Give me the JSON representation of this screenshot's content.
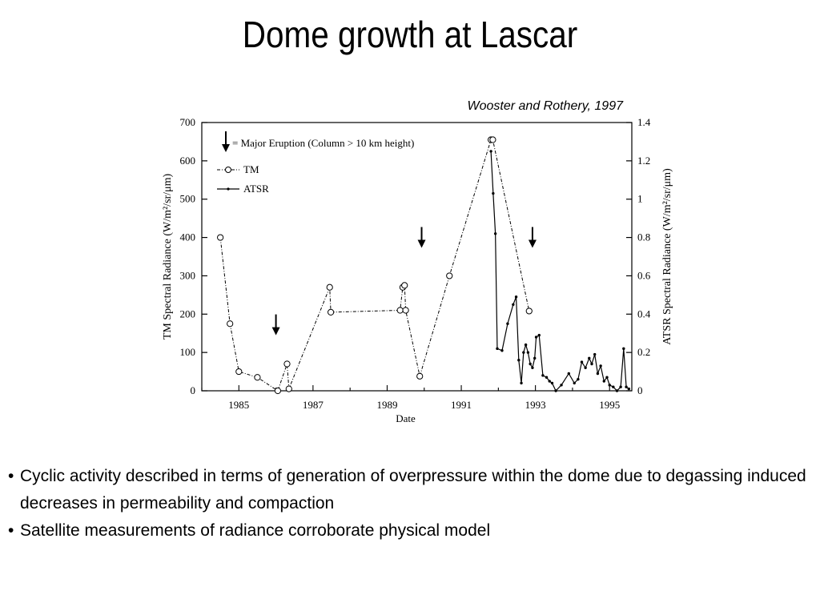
{
  "slide": {
    "title": "Dome growth at Lascar",
    "citation": "Wooster and Rothery, 1997",
    "bullets": [
      "Cyclic activity described in terms of generation of overpressure within the dome due to degassing induced decreases in permeability and compaction",
      "Satellite measurements of radiance corroborate physical model"
    ]
  },
  "chart_data": {
    "type": "line",
    "title": "",
    "xlabel": "Date",
    "ylabel": "TM Spectral Radiance (W/m²/sr/μm)",
    "y2label": "ATSR Spectral Radiance (W/m²/sr/μm)",
    "xlim": [
      1984,
      1995.6
    ],
    "ylim": [
      0,
      700
    ],
    "y2lim": [
      0,
      1.4
    ],
    "x_ticks": [
      1985,
      1987,
      1989,
      1991,
      1993,
      1995
    ],
    "x_tick_labels": [
      "1985",
      "1987",
      "1989",
      "1991",
      "1993",
      "1995"
    ],
    "y_ticks": [
      0,
      100,
      200,
      300,
      400,
      500,
      600,
      700
    ],
    "y_tick_labels": [
      "0",
      "100",
      "200",
      "300",
      "400",
      "500",
      "600",
      "700"
    ],
    "y2_ticks": [
      0,
      0.2,
      0.4,
      0.6,
      0.8,
      1.0,
      1.2,
      1.4
    ],
    "y2_tick_labels": [
      "0",
      "0.2",
      "0.4",
      "0.6",
      "0.8",
      "1",
      "1.2",
      "1.4"
    ],
    "grid": false,
    "legend": {
      "position": "top-left",
      "eruption_label": "= Major Eruption (Column > 10 km height)"
    },
    "eruption_markers": [
      {
        "x": 1986.0,
        "y": 145
      },
      {
        "x": 1989.93,
        "y": 373
      },
      {
        "x": 1992.92,
        "y": 373
      }
    ],
    "series": [
      {
        "name": "TM",
        "axis": "left",
        "style": "dash-dot-circles",
        "x": [
          1984.5,
          1984.76,
          1985.0,
          1985.5,
          1986.05,
          1986.3,
          1986.35,
          1987.45,
          1987.48,
          1989.35,
          1989.42,
          1989.47,
          1989.5,
          1989.88,
          1990.68,
          1991.8,
          1991.85,
          1992.83
        ],
        "y": [
          400,
          175,
          50,
          35,
          0,
          70,
          5,
          270,
          205,
          210,
          270,
          275,
          210,
          38,
          300,
          655,
          655,
          208
        ]
      },
      {
        "name": "ATSR",
        "axis": "right",
        "style": "solid-dots",
        "x": [
          1991.8,
          1991.86,
          1991.92,
          1991.97,
          1992.1,
          1992.25,
          1992.4,
          1992.48,
          1992.55,
          1992.62,
          1992.68,
          1992.74,
          1992.8,
          1992.86,
          1992.92,
          1992.98,
          1993.02,
          1993.1,
          1993.2,
          1993.3,
          1993.38,
          1993.45,
          1993.55,
          1993.7,
          1993.9,
          1994.05,
          1994.15,
          1994.25,
          1994.35,
          1994.45,
          1994.52,
          1994.6,
          1994.68,
          1994.76,
          1994.85,
          1994.93,
          1995.0,
          1995.1,
          1995.2,
          1995.3,
          1995.38,
          1995.45,
          1995.52
        ],
        "y": [
          1.25,
          1.03,
          0.82,
          0.22,
          0.21,
          0.35,
          0.45,
          0.49,
          0.16,
          0.04,
          0.2,
          0.24,
          0.2,
          0.14,
          0.12,
          0.17,
          0.28,
          0.29,
          0.08,
          0.07,
          0.05,
          0.04,
          0.0,
          0.03,
          0.09,
          0.04,
          0.06,
          0.15,
          0.12,
          0.17,
          0.14,
          0.19,
          0.09,
          0.13,
          0.05,
          0.07,
          0.03,
          0.02,
          0.0,
          0.02,
          0.22,
          0.02,
          0.01
        ]
      }
    ]
  }
}
